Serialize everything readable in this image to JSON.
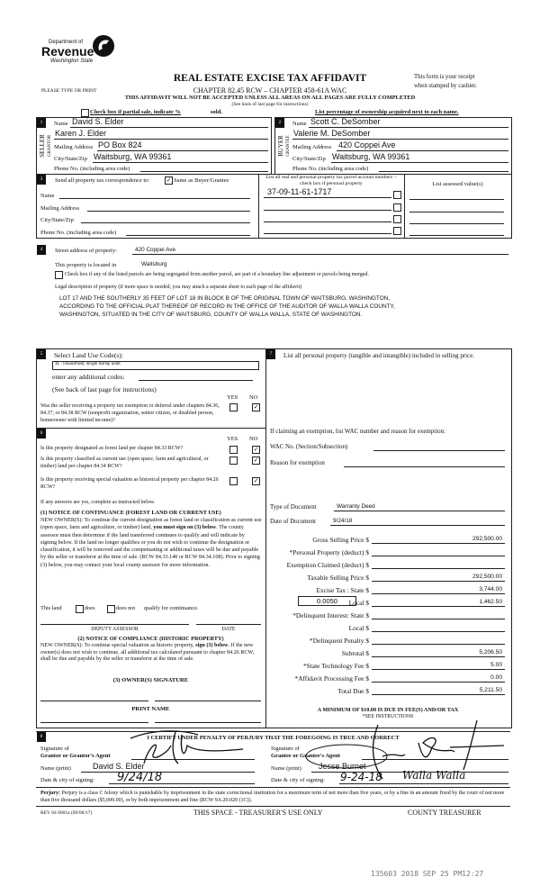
{
  "header": {
    "logo": {
      "line1": "Department of",
      "line2": "Revenue",
      "line3": "Washington State"
    },
    "title": "REAL ESTATE EXCISE TAX AFFIDAVIT",
    "please_type": "PLEASE TYPE OR PRINT",
    "chapter": "CHAPTER 82.45 RCW – CHAPTER 458-61A WAC",
    "receipt_line1": "This form is your receipt",
    "receipt_line2": "when stamped by cashier.",
    "warning": "THIS AFFIDAVIT WILL NOT BE ACCEPTED UNLESS ALL AREAS ON ALL PAGES ARE FULLY COMPLETED",
    "see_back": "(See back of last page for instructions)",
    "partial_sale": "Check box if partial sale, indicate %",
    "sold": "sold.",
    "list_percentage": "List percentage of ownership acquired next to each name."
  },
  "seller": {
    "number": "1",
    "side_label": "SELLER",
    "side_label2": "GRANTOR",
    "name_label": "Name",
    "name": "David S. Elder",
    "name2": "Karen J. Elder",
    "mailing_label": "Mailing Address",
    "mailing": "PO Box 824",
    "city_label": "City/State/Zip",
    "city": "Waitsburg, WA 99361",
    "phone_label": "Phone No. (including area code)"
  },
  "buyer": {
    "number": "2",
    "side_label": "BUYER",
    "side_label2": "GRANTEE",
    "name_label": "Name",
    "name": "Scott C. DeSomber",
    "name2": "Valerie M. DeSomber",
    "mailing_label": "Mailing Address",
    "mailing": "420 Coppei Ave",
    "city_label": "City/State/Zip",
    "city": "Waitsburg, WA 99361",
    "phone_label": "Phone No. (including area code)"
  },
  "section3": {
    "number": "3",
    "send_label": "Send all property tax correspondence to:",
    "same_as_buyer": "Same as Buyer/Grantee",
    "same_as_buyer_checked": true,
    "name_label": "Name",
    "mailing_label": "Mailing Address",
    "city_label": "City/State/Zip",
    "phone_label": "Phone No. (including area code)",
    "parcel_header": "List all real and personal property tax parcel account numbers – check box if personal property",
    "assessed_header": "List assessed value(s)",
    "parcels": [
      "37-09-11-61-1717",
      "",
      "",
      ""
    ]
  },
  "section4": {
    "number": "4",
    "street_label": "Street address of property:",
    "street": "420 Coppei Ave",
    "located_label": "This property is located in",
    "located": "Waitsburg",
    "segregated_label": "Check box if any of the listed parcels are being segregated from another parcel, are part of a boundary line adjustment or parcels being merged.",
    "legal_label": "Legal description of property (if more space is needed, you may attach a separate sheet to each page of the affidavit)",
    "legal_lines": [
      "LOT 17 AND THE SOUTHERLY 35 FEET OF LOT 18 IN BLOCK B OF THE ORIGINAL TOWN OF WAITSBURG, WASHINGTON,",
      "ACCORDING TO THE OFFICIAL PLAT THEREOF OF RECORD IN THE OFFICE OF THE AUDITOR OF WALLA WALLA COUNTY,",
      "WASHINGTON, SITUATED IN THE CITY OF WAITSBURG, COUNTY OF WALLA WALLA, STATE OF WASHINGTON."
    ]
  },
  "section5": {
    "number": "5",
    "title": "Select Land Use Code(s):",
    "code": "11 - Household, single family units",
    "additional": "enter any additional codes:",
    "see_back": "(See back of last page for instructions)",
    "yes": "YES",
    "no": "NO",
    "question": "Was the seller receiving a property tax exemption or deferral under chapters 84.36, 84.37, or 84.38 RCW (nonprofit organization, senior citizen, or disabled person, homeowner with limited income)?",
    "answer": "NO"
  },
  "section6": {
    "number": "6",
    "yes": "YES",
    "no": "NO",
    "questions": [
      {
        "text": "Is this property designated as forest land per chapter 84.33 RCW?",
        "answer": "NO"
      },
      {
        "text": "Is this property classified as current use (open space, farm and agricultural, or timber) land per chapter 84.34 RCW?",
        "answer": "NO"
      },
      {
        "text": "Is this property receiving special valuation as historical property per chapter 84.26 RCW?",
        "answer": "NO"
      }
    ],
    "if_yes": "If any answers are yes, complete as instructed below.",
    "notice1_title": "(1) NOTICE OF CONTINUANCE  (FOREST LAND OR CURRENT USE)",
    "notice1_text_a": "NEW OWNER(S): To continue the current designation as forest land or classification as current use (open space, farm and agriculture, or timber) land, ",
    "notice1_bold": "you must sign on (3) below",
    "notice1_text_b": ". The county assessor must then determine if the land transferred continues to qualify and will indicate by signing below. If the land no longer qualifies or you do not wish to continue the designation or classification, it will be removed and the compensating or additional taxes will be due and payable by the seller or transferor at the time of sale. (RCW 84.33.140 or RCW 84.34.108). Prior to signing (3) below, you may contact your local county assessor for more information.",
    "this_land": "This land",
    "does": "does",
    "does_not": "does not",
    "qualify": "qualify for continuance.",
    "deputy_assessor": "DEPUTY ASSESSOR",
    "date": "DATE",
    "notice2_title": "(2) NOTICE OF COMPLIANCE (HISTORIC PROPERTY)",
    "notice2_text_a": "NEW OWNER(S): To continue special valuation as historic property, ",
    "notice2_bold": "sign (3) below",
    "notice2_text_b": ". If the new owner(s) does not wish to continue, all additional tax calculated pursuant to chapter 84.26 RCW, shall be due and payable by the seller or transferor at the time of sale.",
    "owner_signature": "(3)  OWNER(S) SIGNATURE",
    "print_name": "PRINT NAME"
  },
  "section7": {
    "number": "7",
    "personal_property": "List all  personal property (tangible and intangible) included in selling price.",
    "claiming": "If claiming an exemption, list WAC number and reason for exemption:",
    "wac_label": "WAC No. (Section/Subsection)",
    "reason_label": "Reason for exemption",
    "doc_type_label": "Type of Document",
    "doc_type": "Warranty Deed",
    "doc_date_label": "Date of Document",
    "doc_date": "9/24/18",
    "local_rate": "0.0050",
    "rows": [
      {
        "label": "Gross Selling Price $",
        "value": "292,500.00"
      },
      {
        "label": "*Personal Property (deduct) $",
        "value": ""
      },
      {
        "label": "Exemption Claimed (deduct) $",
        "value": ""
      },
      {
        "label": "Taxable Selling Price $",
        "value": "292,500.00"
      },
      {
        "label": "Excise Tax : State $",
        "value": "3,744.00"
      },
      {
        "label": "Local $",
        "value": "1,462.50"
      },
      {
        "label": "*Delinquent Interest: State $",
        "value": ""
      },
      {
        "label": "Local $",
        "value": ""
      },
      {
        "label": "*Delinquent Penalty $",
        "value": ""
      },
      {
        "label": "Subtotal $",
        "value": "5,206.50"
      },
      {
        "label": "*State Technology Fee $",
        "value": "5.00"
      },
      {
        "label": "*Affidavit Processing Fee $",
        "value": "0.00"
      },
      {
        "label": "Total Due $",
        "value": "5,211.50"
      }
    ],
    "minimum": "A MINIMUM OF $10.00 IS DUE IN FEE(S) AND/OR TAX",
    "see_instructions": "*SEE INSTRUCTIONS"
  },
  "section8": {
    "number": "8",
    "certify": "I CERTIFY UNDER PENALTY OF PERJURY THAT THE FOREGOING IS TRUE AND CORRECT",
    "grantor_sig_label1": "Signature of",
    "grantor_sig_label2": "Grantor or Grantor's Agent",
    "grantor_name_label": "Name (print)",
    "grantor_name": "David S. Elder",
    "grantor_date_label": "Date & city of signing:",
    "grantor_date": "9/24/18",
    "grantee_sig_label1": "Signature of",
    "grantee_sig_label2": "Grantee or Grantee's Agent",
    "grantee_name_label": "Name (print)",
    "grantee_name": "Jesse Burnet",
    "grantee_date_label": "Date & city of signing:",
    "grantee_date": "9-24-18",
    "grantee_city": "Walla Walla"
  },
  "footer": {
    "perjury_bold": "Perjury:",
    "perjury_text": " Perjury is a class C felony which is punishable by imprisonment in the state correctional institution for a maximum term of not more than five years, or by a fine in an amount fixed by the court of not more than five thousand dollars ($5,000.00), or by both imprisonment and fine (RCW 9A.20.020 (1C)).",
    "rev": "REV 84 0001a (09/06/17)",
    "treasurer_use": "THIS SPACE - TREASURER'S USE ONLY",
    "county_treasurer": "COUNTY TREASURER",
    "stamp": "135603 2018 SEP 25 PM12:27"
  }
}
